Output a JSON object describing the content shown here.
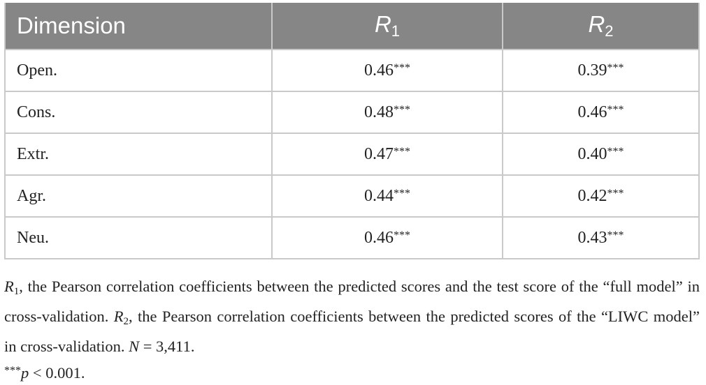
{
  "table": {
    "header": {
      "dimension": "Dimension",
      "r1": {
        "base": "R",
        "sub": "1"
      },
      "r2": {
        "base": "R",
        "sub": "2"
      }
    },
    "rows": [
      {
        "dimension": "Open.",
        "r1": "0.46",
        "r1_sig": "***",
        "r2": "0.39",
        "r2_sig": "***"
      },
      {
        "dimension": "Cons.",
        "r1": "0.48",
        "r1_sig": "***",
        "r2": "0.46",
        "r2_sig": "***"
      },
      {
        "dimension": "Extr.",
        "r1": "0.47",
        "r1_sig": "***",
        "r2": "0.40",
        "r2_sig": "***"
      },
      {
        "dimension": "Agr.",
        "r1": "0.44",
        "r1_sig": "***",
        "r2": "0.42",
        "r2_sig": "***"
      },
      {
        "dimension": "Neu.",
        "r1": "0.46",
        "r1_sig": "***",
        "r2": "0.43",
        "r2_sig": "***"
      }
    ]
  },
  "notes": {
    "line1": [
      "R",
      "1",
      ", the Pearson correlation coefficients between the predicted scores and the test score of the “full model” in cross-validation. ",
      "R",
      "2",
      ", the Pearson correlation coefficients between the predicted scores of the “LIWC model” in cross-validation. ",
      "N",
      " = 3,411."
    ],
    "line2": [
      "***",
      "p",
      " < 0.001."
    ]
  }
}
